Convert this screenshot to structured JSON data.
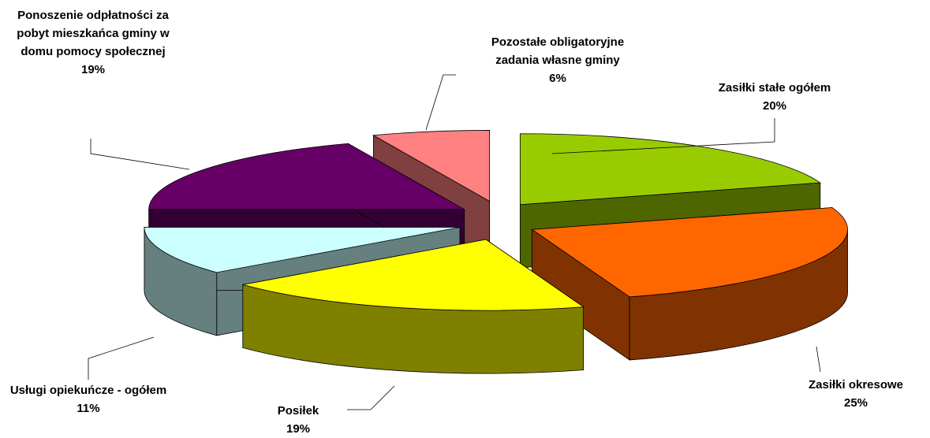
{
  "chart_data": {
    "type": "pie3d",
    "categories": [
      "Zasiłki stałe ogółem",
      "Zasiłki okresowe",
      "Posiłek",
      "Usługi opiekuńcze - ogółem",
      "Ponoszenie odpłatności za pobyt mieszkańca gminy w domu pomocy społecznej",
      "Pozostałe obligatoryjne zadania własne gminy"
    ],
    "values": [
      20,
      25,
      19,
      11,
      19,
      6
    ],
    "value_labels": [
      "20%",
      "25%",
      "19%",
      "11%",
      "19%",
      "6%"
    ],
    "colors": [
      "#99cc00",
      "#ff6600",
      "#ffff00",
      "#ccffff",
      "#660066",
      "#ff8080"
    ]
  }
}
